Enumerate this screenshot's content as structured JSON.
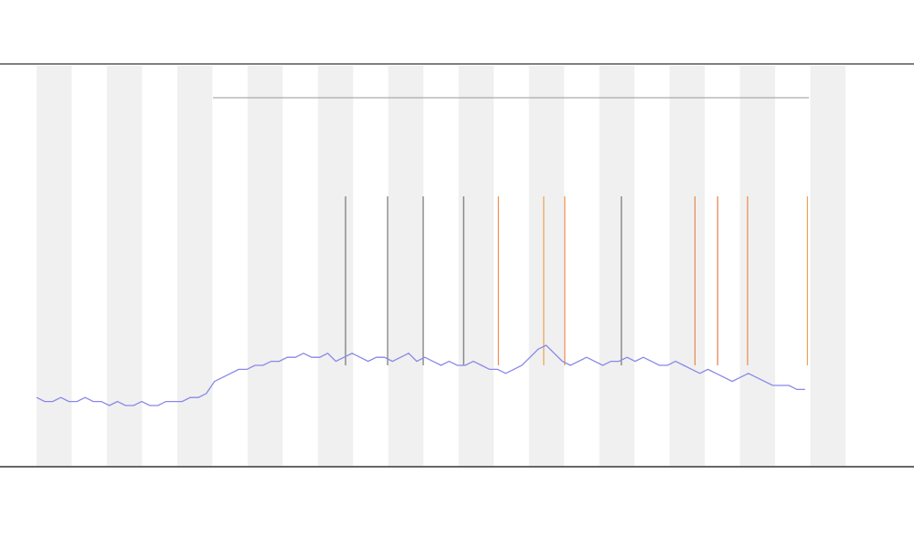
{
  "chart_data": {
    "type": "line",
    "xlim": [
      0,
      100
    ],
    "ylim": [
      0,
      100
    ],
    "x": [
      0,
      1,
      2,
      3,
      4,
      5,
      6,
      7,
      8,
      9,
      10,
      11,
      12,
      13,
      14,
      15,
      16,
      17,
      18,
      19,
      20,
      21,
      22,
      23,
      24,
      25,
      26,
      27,
      28,
      29,
      30,
      31,
      32,
      33,
      34,
      35,
      36,
      37,
      38,
      39,
      40,
      41,
      42,
      43,
      44,
      45,
      46,
      47,
      48,
      49,
      50,
      51,
      52,
      53,
      54,
      55,
      56,
      57,
      58,
      59,
      60,
      61,
      62,
      63,
      64,
      65,
      66,
      67,
      68,
      69,
      70,
      71,
      72,
      73,
      74,
      75,
      76,
      77,
      78,
      79,
      80,
      81,
      82,
      83,
      84,
      85,
      86,
      87,
      88,
      89,
      90,
      91,
      92,
      93,
      94,
      95
    ],
    "series": [
      {
        "color": "#8888e8",
        "values": [
          17,
          16,
          16,
          17,
          16,
          16,
          17,
          16,
          16,
          15,
          16,
          15,
          15,
          16,
          15,
          15,
          16,
          16,
          16,
          17,
          17,
          18,
          21,
          22,
          23,
          24,
          24,
          25,
          25,
          26,
          26,
          27,
          27,
          28,
          27,
          27,
          28,
          26,
          27,
          28,
          27,
          26,
          27,
          27,
          26,
          27,
          28,
          26,
          27,
          26,
          25,
          26,
          25,
          25,
          26,
          25,
          24,
          24,
          23,
          24,
          25,
          27,
          29,
          30,
          28,
          26,
          25,
          26,
          27,
          26,
          25,
          26,
          26,
          27,
          26,
          27,
          26,
          25,
          25,
          26,
          25,
          24,
          23,
          24,
          23,
          22,
          21,
          22,
          23,
          22,
          21,
          20,
          20,
          20,
          19,
          19
        ]
      }
    ],
    "events": [
      {
        "x": 38.2,
        "color": "#555555"
      },
      {
        "x": 43.4,
        "color": "#555555"
      },
      {
        "x": 47.8,
        "color": "#555555"
      },
      {
        "x": 52.8,
        "color": "#555555"
      },
      {
        "x": 57.1,
        "color": "#e8702a"
      },
      {
        "x": 62.7,
        "color": "#e8902a"
      },
      {
        "x": 65.3,
        "color": "#e8702a"
      },
      {
        "x": 72.3,
        "color": "#555555"
      },
      {
        "x": 81.4,
        "color": "#e8702a"
      },
      {
        "x": 84.2,
        "color": "#e06020"
      },
      {
        "x": 87.9,
        "color": "#e8702a"
      },
      {
        "x": 95.3,
        "color": "#e8902a"
      }
    ]
  }
}
